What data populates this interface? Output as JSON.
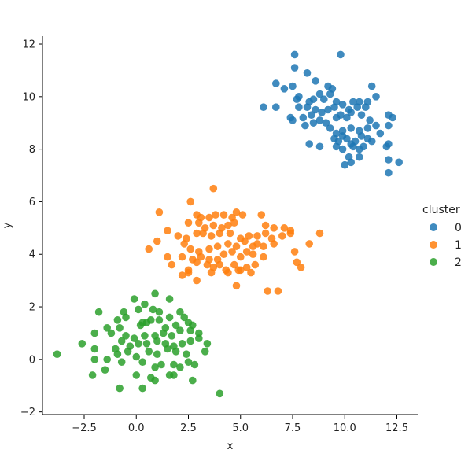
{
  "chart_data": {
    "type": "scatter",
    "title": "",
    "xlabel": "x",
    "ylabel": "y",
    "xlim": [
      -4.5,
      13.5
    ],
    "ylim": [
      -2.1,
      12.3
    ],
    "xticks": [
      -2.5,
      0.0,
      2.5,
      5.0,
      7.5,
      10.0,
      12.5
    ],
    "xtick_labels": [
      "−2.5",
      "0.0",
      "2.5",
      "5.0",
      "7.5",
      "10.0",
      "12.5"
    ],
    "yticks": [
      -2,
      0,
      2,
      4,
      6,
      8,
      10,
      12
    ],
    "ytick_labels": [
      "−2",
      "0",
      "2",
      "4",
      "6",
      "8",
      "10",
      "12"
    ],
    "grid": false,
    "legend": {
      "title": "cluster",
      "placement": "right"
    },
    "series": [
      {
        "name": "0",
        "color": "#1f77b4",
        "points": [
          [
            7.6,
            11.6
          ],
          [
            9.8,
            11.6
          ],
          [
            7.6,
            11.1
          ],
          [
            8.2,
            10.9
          ],
          [
            8.6,
            10.6
          ],
          [
            6.7,
            10.5
          ],
          [
            7.1,
            10.3
          ],
          [
            7.5,
            10.4
          ],
          [
            9.2,
            10.4
          ],
          [
            9.4,
            10.3
          ],
          [
            11.3,
            10.4
          ],
          [
            7.8,
            10.0
          ],
          [
            7.7,
            9.9
          ],
          [
            8.3,
            9.8
          ],
          [
            8.5,
            9.9
          ],
          [
            8.8,
            10.1
          ],
          [
            9.0,
            9.9
          ],
          [
            9.3,
            10.1
          ],
          [
            9.6,
            9.8
          ],
          [
            9.9,
            9.7
          ],
          [
            10.4,
            9.8
          ],
          [
            10.7,
            9.8
          ],
          [
            11.1,
            9.8
          ],
          [
            11.5,
            10.0
          ],
          [
            6.1,
            9.6
          ],
          [
            6.7,
            9.6
          ],
          [
            7.8,
            9.6
          ],
          [
            8.2,
            9.6
          ],
          [
            8.6,
            9.5
          ],
          [
            8.9,
            9.4
          ],
          [
            9.2,
            9.5
          ],
          [
            9.5,
            9.6
          ],
          [
            10.2,
            9.5
          ],
          [
            10.6,
            9.6
          ],
          [
            11.0,
            9.6
          ],
          [
            7.4,
            9.2
          ],
          [
            7.5,
            9.1
          ],
          [
            8.0,
            9.2
          ],
          [
            8.4,
            9.3
          ],
          [
            8.8,
            9.1
          ],
          [
            9.1,
            9.0
          ],
          [
            9.6,
            9.2
          ],
          [
            9.8,
            9.3
          ],
          [
            10.1,
            9.2
          ],
          [
            10.3,
            9.4
          ],
          [
            10.8,
            9.3
          ],
          [
            11.2,
            9.1
          ],
          [
            12.1,
            9.3
          ],
          [
            12.3,
            9.2
          ],
          [
            8.1,
            8.9
          ],
          [
            8.5,
            9.0
          ],
          [
            9.3,
            8.8
          ],
          [
            9.6,
            8.6
          ],
          [
            9.9,
            8.7
          ],
          [
            10.3,
            8.8
          ],
          [
            10.7,
            8.7
          ],
          [
            11.1,
            8.8
          ],
          [
            11.5,
            8.9
          ],
          [
            12.1,
            8.9
          ],
          [
            9.5,
            8.4
          ],
          [
            9.7,
            8.3
          ],
          [
            9.9,
            8.5
          ],
          [
            10.1,
            8.4
          ],
          [
            10.3,
            8.2
          ],
          [
            10.5,
            8.3
          ],
          [
            10.8,
            8.5
          ],
          [
            11.1,
            8.4
          ],
          [
            11.3,
            8.3
          ],
          [
            11.7,
            8.6
          ],
          [
            12.1,
            8.2
          ],
          [
            8.3,
            8.2
          ],
          [
            8.8,
            8.1
          ],
          [
            9.6,
            8.1
          ],
          [
            9.9,
            8.0
          ],
          [
            10.4,
            8.1
          ],
          [
            10.7,
            8.0
          ],
          [
            10.9,
            8.1
          ],
          [
            12.0,
            8.1
          ],
          [
            10.2,
            7.7
          ],
          [
            10.3,
            7.5
          ],
          [
            10.0,
            7.4
          ],
          [
            10.7,
            7.7
          ],
          [
            12.1,
            7.6
          ],
          [
            12.6,
            7.5
          ],
          [
            12.1,
            7.1
          ]
        ]
      },
      {
        "name": "1",
        "color": "#ff7f0e",
        "points": [
          [
            3.7,
            6.5
          ],
          [
            2.6,
            6.0
          ],
          [
            1.1,
            5.6
          ],
          [
            2.9,
            5.5
          ],
          [
            3.1,
            5.4
          ],
          [
            3.5,
            5.4
          ],
          [
            3.8,
            5.5
          ],
          [
            4.2,
            5.5
          ],
          [
            4.6,
            5.4
          ],
          [
            4.8,
            5.6
          ],
          [
            5.1,
            5.5
          ],
          [
            6.0,
            5.5
          ],
          [
            2.5,
            5.2
          ],
          [
            3.0,
            5.2
          ],
          [
            3.3,
            5.0
          ],
          [
            3.7,
            5.1
          ],
          [
            4.1,
            5.0
          ],
          [
            4.4,
            5.1
          ],
          [
            4.7,
            5.2
          ],
          [
            6.2,
            5.1
          ],
          [
            6.6,
            5.0
          ],
          [
            7.1,
            5.0
          ],
          [
            7.4,
            4.9
          ],
          [
            1.5,
            4.9
          ],
          [
            2.0,
            4.7
          ],
          [
            2.4,
            4.6
          ],
          [
            2.9,
            4.8
          ],
          [
            3.2,
            4.8
          ],
          [
            3.6,
            4.7
          ],
          [
            4.0,
            4.8
          ],
          [
            4.5,
            4.8
          ],
          [
            5.0,
            4.6
          ],
          [
            5.4,
            4.7
          ],
          [
            5.8,
            4.7
          ],
          [
            6.2,
            4.8
          ],
          [
            6.5,
            4.6
          ],
          [
            7.0,
            4.7
          ],
          [
            7.4,
            4.8
          ],
          [
            8.8,
            4.8
          ],
          [
            1.0,
            4.5
          ],
          [
            2.3,
            4.4
          ],
          [
            2.6,
            4.2
          ],
          [
            3.0,
            4.1
          ],
          [
            3.5,
            4.2
          ],
          [
            3.9,
            4.3
          ],
          [
            4.4,
            4.4
          ],
          [
            4.8,
            4.3
          ],
          [
            5.2,
            4.5
          ],
          [
            5.6,
            4.3
          ],
          [
            5.8,
            4.4
          ],
          [
            6.1,
            4.3
          ],
          [
            6.6,
            4.4
          ],
          [
            8.3,
            4.4
          ],
          [
            0.6,
            4.2
          ],
          [
            1.5,
            3.9
          ],
          [
            2.2,
            3.9
          ],
          [
            2.7,
            3.8
          ],
          [
            3.1,
            3.9
          ],
          [
            3.5,
            3.8
          ],
          [
            3.9,
            3.8
          ],
          [
            4.2,
            4.0
          ],
          [
            4.6,
            4.1
          ],
          [
            5.0,
            3.9
          ],
          [
            5.3,
            4.1
          ],
          [
            5.6,
            4.0
          ],
          [
            6.1,
            3.9
          ],
          [
            7.6,
            4.1
          ],
          [
            1.7,
            3.6
          ],
          [
            2.5,
            3.4
          ],
          [
            2.9,
            3.7
          ],
          [
            3.4,
            3.6
          ],
          [
            3.7,
            3.5
          ],
          [
            4.0,
            3.6
          ],
          [
            4.3,
            3.4
          ],
          [
            4.7,
            3.6
          ],
          [
            5.0,
            3.4
          ],
          [
            5.3,
            3.5
          ],
          [
            5.7,
            3.6
          ],
          [
            7.7,
            3.7
          ],
          [
            2.2,
            3.2
          ],
          [
            2.5,
            3.3
          ],
          [
            2.9,
            3.0
          ],
          [
            3.6,
            3.3
          ],
          [
            4.4,
            3.3
          ],
          [
            4.9,
            3.4
          ],
          [
            5.5,
            3.3
          ],
          [
            7.9,
            3.5
          ],
          [
            4.8,
            2.8
          ],
          [
            6.3,
            2.6
          ],
          [
            6.8,
            2.6
          ]
        ]
      },
      {
        "name": "2",
        "color": "#2ca02c",
        "points": [
          [
            0.9,
            2.5
          ],
          [
            -0.1,
            2.3
          ],
          [
            1.6,
            2.3
          ],
          [
            0.4,
            2.1
          ],
          [
            0.1,
            1.9
          ],
          [
            0.8,
            1.9
          ],
          [
            1.1,
            1.8
          ],
          [
            -1.8,
            1.8
          ],
          [
            -0.6,
            1.8
          ],
          [
            2.1,
            1.8
          ],
          [
            -0.9,
            1.5
          ],
          [
            -0.5,
            1.6
          ],
          [
            0.3,
            1.4
          ],
          [
            0.7,
            1.5
          ],
          [
            1.1,
            1.5
          ],
          [
            1.6,
            1.6
          ],
          [
            2.3,
            1.6
          ],
          [
            -1.4,
            1.2
          ],
          [
            -0.8,
            1.2
          ],
          [
            0.2,
            1.3
          ],
          [
            0.5,
            1.4
          ],
          [
            1.4,
            1.2
          ],
          [
            1.9,
            1.3
          ],
          [
            2.5,
            1.4
          ],
          [
            2.7,
            1.3
          ],
          [
            -2.0,
            1.0
          ],
          [
            -1.2,
            1.0
          ],
          [
            -0.5,
            0.9
          ],
          [
            -0.1,
            0.8
          ],
          [
            0.4,
            0.9
          ],
          [
            0.9,
            0.9
          ],
          [
            1.3,
            1.0
          ],
          [
            1.7,
            0.9
          ],
          [
            2.1,
            1.1
          ],
          [
            2.6,
            1.1
          ],
          [
            3.0,
            1.0
          ],
          [
            -2.6,
            0.6
          ],
          [
            -2.0,
            0.4
          ],
          [
            -1.0,
            0.4
          ],
          [
            -0.7,
            0.7
          ],
          [
            -0.3,
            0.5
          ],
          [
            0.1,
            0.6
          ],
          [
            0.5,
            0.6
          ],
          [
            1.0,
            0.7
          ],
          [
            1.4,
            0.6
          ],
          [
            1.8,
            0.5
          ],
          [
            2.2,
            0.6
          ],
          [
            2.6,
            0.7
          ],
          [
            3.0,
            0.8
          ],
          [
            3.4,
            0.6
          ],
          [
            -3.8,
            0.2
          ],
          [
            -2.0,
            0.0
          ],
          [
            -1.4,
            0.0
          ],
          [
            -0.9,
            0.2
          ],
          [
            -0.4,
            0.3
          ],
          [
            0.0,
            0.1
          ],
          [
            0.6,
            0.3
          ],
          [
            1.0,
            0.2
          ],
          [
            1.5,
            0.4
          ],
          [
            1.9,
            0.3
          ],
          [
            2.4,
            0.2
          ],
          [
            3.3,
            0.3
          ],
          [
            -1.5,
            -0.4
          ],
          [
            -0.7,
            -0.1
          ],
          [
            0.3,
            -0.1
          ],
          [
            0.9,
            -0.3
          ],
          [
            1.2,
            -0.2
          ],
          [
            1.8,
            -0.2
          ],
          [
            2.1,
            -0.3
          ],
          [
            2.5,
            -0.1
          ],
          [
            2.8,
            -0.2
          ],
          [
            -2.1,
            -0.6
          ],
          [
            0.0,
            -0.6
          ],
          [
            0.7,
            -0.7
          ],
          [
            1.6,
            -0.6
          ],
          [
            1.8,
            -0.6
          ],
          [
            2.7,
            -0.8
          ],
          [
            0.9,
            -0.8
          ],
          [
            -0.8,
            -1.1
          ],
          [
            0.3,
            -1.1
          ],
          [
            4.0,
            -1.3
          ]
        ]
      }
    ]
  }
}
